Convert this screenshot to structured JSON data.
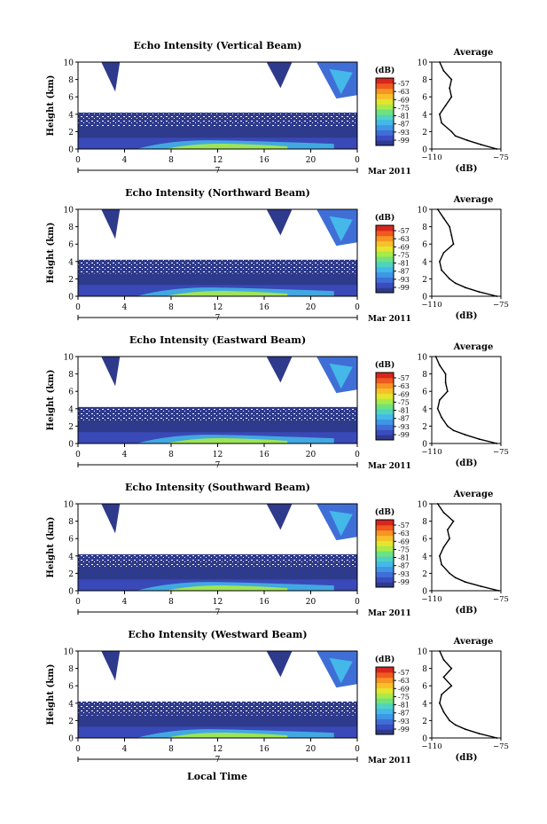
{
  "figure": {
    "xlabel": "Local Time",
    "date_label": "Mar 2011",
    "day_marker": "7"
  },
  "colorbar": {
    "unit": "(dB)",
    "ticks": [
      "-57",
      "-63",
      "-69",
      "-75",
      "-81",
      "-87",
      "-93",
      "-99"
    ],
    "colors": [
      "#2e3a8c",
      "#3b4cc0",
      "#3f6fd6",
      "#3f95e6",
      "#44b8e8",
      "#4fd3c0",
      "#6fe27e",
      "#a9ea4a",
      "#e5e52d",
      "#f7c02a",
      "#f79424",
      "#ef5a1e",
      "#d7261e"
    ]
  },
  "chart_data": [
    {
      "type": "heatmap",
      "title": "Echo Intensity (Vertical Beam)",
      "ylabel": "Height (km)",
      "xlim": [
        0,
        24
      ],
      "ylim": [
        0,
        10
      ],
      "x_ticks": [
        "0",
        "4",
        "8",
        "12",
        "16",
        "20",
        "0"
      ],
      "y_ticks": [
        "0",
        "2",
        "4",
        "6",
        "8",
        "10"
      ],
      "profile": {
        "title": "Average",
        "xlabel": "(dB)",
        "xlim": [
          -110,
          -75
        ],
        "x_ticks": [
          "−110",
          "−75"
        ],
        "y_ticks": [
          "0",
          "2",
          "4",
          "6",
          "8",
          "10"
        ],
        "heights": [
          0,
          0.5,
          1,
          1.5,
          2,
          3,
          4,
          5,
          6,
          7,
          8,
          9,
          10
        ],
        "values": [
          -77,
          -85,
          -92,
          -98,
          -100,
          -105,
          -106,
          -103,
          -100,
          -101,
          -100,
          -104,
          -106
        ]
      }
    },
    {
      "type": "heatmap",
      "title": "Echo Intensity (Northward Beam)",
      "ylabel": "Height (km)",
      "xlim": [
        0,
        24
      ],
      "ylim": [
        0,
        10
      ],
      "x_ticks": [
        "0",
        "4",
        "8",
        "12",
        "16",
        "20",
        "0"
      ],
      "y_ticks": [
        "0",
        "2",
        "4",
        "6",
        "8",
        "10"
      ],
      "profile": {
        "title": "Average",
        "xlabel": "(dB)",
        "xlim": [
          -110,
          -75
        ],
        "x_ticks": [
          "−110",
          "−75"
        ],
        "y_ticks": [
          "0",
          "2",
          "4",
          "6",
          "8",
          "10"
        ],
        "heights": [
          0,
          0.5,
          1,
          1.5,
          2,
          3,
          4,
          5,
          6,
          7,
          8,
          9,
          10
        ],
        "values": [
          -77,
          -86,
          -93,
          -98,
          -101,
          -105,
          -106,
          -104,
          -99,
          -100,
          -101,
          -104,
          -107
        ]
      }
    },
    {
      "type": "heatmap",
      "title": "Echo Intensity (Eastward Beam)",
      "ylabel": "Height (km)",
      "xlim": [
        0,
        24
      ],
      "ylim": [
        0,
        10
      ],
      "x_ticks": [
        "0",
        "4",
        "8",
        "12",
        "16",
        "20",
        "0"
      ],
      "y_ticks": [
        "0",
        "2",
        "4",
        "6",
        "8",
        "10"
      ],
      "profile": {
        "title": "Average",
        "xlabel": "(dB)",
        "xlim": [
          -110,
          -75
        ],
        "x_ticks": [
          "−110",
          "−75"
        ],
        "y_ticks": [
          "0",
          "2",
          "4",
          "6",
          "8",
          "10"
        ],
        "heights": [
          0,
          0.5,
          1,
          1.5,
          2,
          3,
          4,
          5,
          6,
          7,
          8,
          9,
          10
        ],
        "values": [
          -77,
          -86,
          -93,
          -99,
          -102,
          -105,
          -107,
          -106,
          -102,
          -103,
          -103,
          -106,
          -108
        ]
      }
    },
    {
      "type": "heatmap",
      "title": "Echo Intensity (Southward Beam)",
      "ylabel": "Height (km)",
      "xlim": [
        0,
        24
      ],
      "ylim": [
        0,
        10
      ],
      "x_ticks": [
        "0",
        "4",
        "8",
        "12",
        "16",
        "20",
        "0"
      ],
      "y_ticks": [
        "0",
        "2",
        "4",
        "6",
        "8",
        "10"
      ],
      "profile": {
        "title": "Average",
        "xlabel": "(dB)",
        "xlim": [
          -110,
          -75
        ],
        "x_ticks": [
          "−110",
          "−75"
        ],
        "y_ticks": [
          "0",
          "2",
          "4",
          "6",
          "8",
          "10"
        ],
        "heights": [
          0,
          0.5,
          1,
          1.5,
          2,
          3,
          4,
          5,
          6,
          7,
          8,
          9,
          10
        ],
        "values": [
          -76,
          -85,
          -93,
          -98,
          -101,
          -105,
          -106,
          -104,
          -101,
          -102,
          -99,
          -104,
          -107
        ]
      }
    },
    {
      "type": "heatmap",
      "title": "Echo Intensity (Westward Beam)",
      "ylabel": "Height (km)",
      "xlim": [
        0,
        24
      ],
      "ylim": [
        0,
        10
      ],
      "x_ticks": [
        "0",
        "4",
        "8",
        "12",
        "16",
        "20",
        "0"
      ],
      "y_ticks": [
        "0",
        "2",
        "4",
        "6",
        "8",
        "10"
      ],
      "profile": {
        "title": "Average",
        "xlabel": "(dB)",
        "xlim": [
          -110,
          -75
        ],
        "x_ticks": [
          "−110",
          "−75"
        ],
        "y_ticks": [
          "0",
          "2",
          "4",
          "6",
          "8",
          "10"
        ],
        "heights": [
          0,
          0.5,
          1,
          1.5,
          2,
          3,
          4,
          5,
          6,
          7,
          8,
          9,
          10
        ],
        "values": [
          -77,
          -86,
          -93,
          -98,
          -101,
          -104,
          -106,
          -105,
          -100,
          -104,
          -100,
          -104,
          -106
        ]
      }
    }
  ]
}
